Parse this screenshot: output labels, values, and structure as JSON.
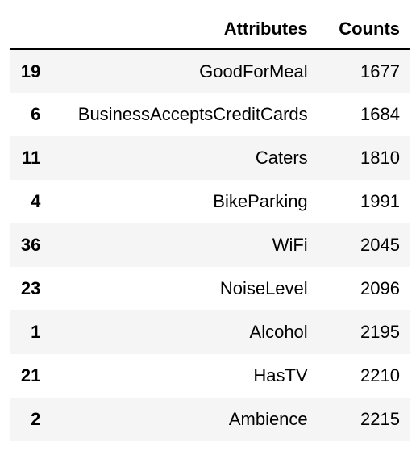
{
  "table": {
    "columns": {
      "index": "",
      "attributes": "Attributes",
      "counts": "Counts"
    },
    "rows": [
      {
        "index": "19",
        "attribute": "GoodForMeal",
        "count": "1677"
      },
      {
        "index": "6",
        "attribute": "BusinessAcceptsCreditCards",
        "count": "1684"
      },
      {
        "index": "11",
        "attribute": "Caters",
        "count": "1810"
      },
      {
        "index": "4",
        "attribute": "BikeParking",
        "count": "1991"
      },
      {
        "index": "36",
        "attribute": "WiFi",
        "count": "2045"
      },
      {
        "index": "23",
        "attribute": "NoiseLevel",
        "count": "2096"
      },
      {
        "index": "1",
        "attribute": "Alcohol",
        "count": "2195"
      },
      {
        "index": "21",
        "attribute": "HasTV",
        "count": "2210"
      },
      {
        "index": "2",
        "attribute": "Ambience",
        "count": "2215"
      }
    ]
  }
}
